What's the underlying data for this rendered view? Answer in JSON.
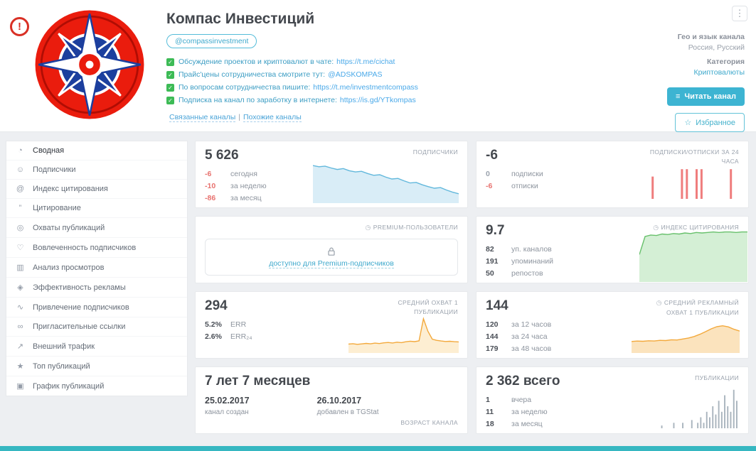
{
  "icons": {
    "warning": "!",
    "kebab": "⋮",
    "clock": "◷",
    "star": "☆",
    "read": "≡",
    "check": "✓"
  },
  "header": {
    "title": "Компас Инвестиций",
    "username": "@compassinvestment",
    "description": [
      {
        "text": "Обсуждение проектов и криптовалют в чате:",
        "link": "https://t.me/cichat"
      },
      {
        "text": "Прайс'цены сотрудничества смотрите тут:",
        "link": "@ADSKOMPAS"
      },
      {
        "text": "По вопросам сотрудничества пишите:",
        "link": "https://t.me/investmentcompass"
      },
      {
        "text": "Подписка на канал по заработку в интернете:",
        "link": "https://is.gd/YTkompas"
      }
    ],
    "related_label": "Связанные каналы",
    "links_divider": "|",
    "similar_label": "Похожие каналы",
    "geo_label": "Гео и язык канала",
    "geo_value": "Россия, Русский",
    "category_label": "Категория",
    "category_value": "Криптовалюты",
    "read_button": "Читать канал",
    "favorite_button": "Избранное"
  },
  "sidebar": {
    "items": [
      {
        "label": "Сводная",
        "glyph": "◔"
      },
      {
        "label": "Подписчики",
        "glyph": "☺"
      },
      {
        "label": "Индекс цитирования",
        "glyph": "@"
      },
      {
        "label": "Цитирование",
        "glyph": "”"
      },
      {
        "label": "Охваты публикаций",
        "glyph": "◎"
      },
      {
        "label": "Вовлеченность подписчиков",
        "glyph": "♡"
      },
      {
        "label": "Анализ просмотров",
        "glyph": "▥"
      },
      {
        "label": "Эффективность рекламы",
        "glyph": "◈"
      },
      {
        "label": "Привлечение подписчиков",
        "glyph": "∿"
      },
      {
        "label": "Пригласительные ссылки",
        "glyph": "∞"
      },
      {
        "label": "Внешний трафик",
        "glyph": "↗"
      },
      {
        "label": "Топ публикаций",
        "glyph": "★"
      },
      {
        "label": "График публикаций",
        "glyph": "▣"
      }
    ]
  },
  "cards": {
    "subscribers": {
      "value": "5 626",
      "label": "ПОДПИСЧИКИ",
      "stats": [
        {
          "v": "-6",
          "t": "сегодня"
        },
        {
          "v": "-10",
          "t": "за неделю"
        },
        {
          "v": "-86",
          "t": "за месяц"
        }
      ]
    },
    "subs_24h": {
      "value": "-6",
      "label": "ПОДПИСКИ/ОТПИСКИ ЗА 24 ЧАСА",
      "stats": [
        {
          "v": "0",
          "t": "подписки"
        },
        {
          "v": "-6",
          "t": "отписки"
        }
      ]
    },
    "premium": {
      "label": "PREMIUM-ПОЛЬЗОВАТЕЛИ",
      "locked_text": "доступно для Premium-подписчиков"
    },
    "citation_index": {
      "value": "9.7",
      "label": "ИНДЕКС ЦИТИРОВАНИЯ",
      "stats": [
        {
          "v": "82",
          "t": "уп. каналов"
        },
        {
          "v": "191",
          "t": "упоминаний"
        },
        {
          "v": "50",
          "t": "репостов"
        }
      ]
    },
    "avg_reach": {
      "value": "294",
      "label": "СРЕДНИЙ ОХВАТ 1 ПУБЛИКАЦИИ",
      "stats": [
        {
          "v": "5.2%",
          "t": "ERR"
        },
        {
          "v": "2.6%",
          "t": "ERR₂₄"
        }
      ]
    },
    "avg_ad_reach": {
      "value": "144",
      "label": "СРЕДНИЙ РЕКЛАМНЫЙ ОХВАТ 1 ПУБЛИКАЦИИ",
      "stats": [
        {
          "v": "120",
          "t": "за 12 часов"
        },
        {
          "v": "144",
          "t": "за 24 часа"
        },
        {
          "v": "179",
          "t": "за 48 часов"
        }
      ]
    },
    "age": {
      "value": "7 лет 7 месяцев",
      "label": "ВОЗРАСТ КАНАЛА",
      "created_value": "25.02.2017",
      "created_label": "канал создан",
      "added_value": "26.10.2017",
      "added_label": "добавлен в TGStat"
    },
    "publications": {
      "value": "2 362 всего",
      "label": "ПУБЛИКАЦИИ",
      "stats": [
        {
          "v": "1",
          "t": "вчера"
        },
        {
          "v": "11",
          "t": "за неделю"
        },
        {
          "v": "18",
          "t": "за месяц"
        }
      ]
    }
  },
  "chart_data": {
    "subscribers": {
      "type": "area",
      "color": "#62b8dc",
      "fill": "#d9edf7",
      "min": 5600,
      "max": 5725,
      "values": [
        5718,
        5714,
        5716,
        5710,
        5705,
        5708,
        5701,
        5697,
        5699,
        5692,
        5686,
        5688,
        5680,
        5674,
        5676,
        5668,
        5661,
        5663,
        5655,
        5649,
        5644,
        5646,
        5638,
        5631,
        5626
      ]
    },
    "subs_24h": {
      "type": "bar",
      "color": "#ef7d7d",
      "max": 2.2,
      "values": [
        0,
        0,
        0,
        0,
        0,
        0,
        1.5,
        0,
        0,
        0,
        0,
        0,
        2,
        2,
        0,
        2,
        2,
        0,
        0,
        0,
        0,
        0,
        2,
        0
      ]
    },
    "citation_index": {
      "type": "area",
      "color": "#67c06b",
      "fill": "#d4efd5",
      "min": 0,
      "max": 10.5,
      "values": [
        5.2,
        8.8,
        9.1,
        9.0,
        9.3,
        9.2,
        9.4,
        9.3,
        9.5,
        9.4,
        9.6,
        9.5,
        9.6,
        9.7,
        9.6,
        9.7,
        9.7,
        9.6,
        9.7,
        9.7
      ]
    },
    "avg_reach": {
      "type": "area",
      "color": "#f3a93c",
      "fill": "#fdeed2",
      "min": 150,
      "max": 680,
      "values": [
        262,
        268,
        258,
        264,
        272,
        266,
        276,
        270,
        280,
        286,
        278,
        290,
        284,
        296,
        305,
        298,
        310,
        640,
        455,
        335,
        318,
        308,
        300,
        304,
        297,
        294
      ]
    },
    "avg_ad_reach": {
      "type": "area",
      "color": "#f3a93c",
      "fill": "#fbe3bd",
      "min": 0,
      "max": 260,
      "values": [
        92,
        96,
        94,
        99,
        97,
        103,
        101,
        108,
        106,
        115,
        124,
        138,
        158,
        182,
        208,
        228,
        236,
        226,
        204,
        188
      ]
    },
    "publications": {
      "type": "bar",
      "color": "#a9b4bd",
      "max": 8,
      "values": [
        0,
        0,
        0.5,
        0,
        0,
        0,
        1,
        0,
        0,
        1,
        0,
        0,
        1.5,
        0,
        1,
        2,
        1,
        3,
        2,
        4,
        2.5,
        5,
        3,
        6,
        4,
        3,
        7,
        5
      ]
    }
  }
}
